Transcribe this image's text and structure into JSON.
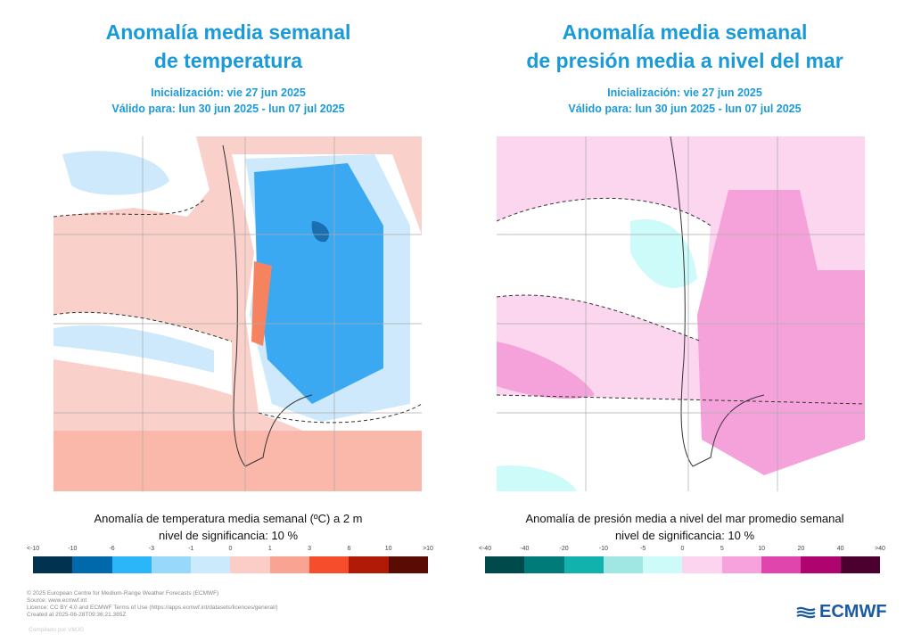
{
  "left": {
    "title_line1": "Anomalía media semanal",
    "title_line2": "de temperatura",
    "init": "Inicialización: vie 27 jun 2025",
    "valid": "Válido para: lun 30 jun 2025 - lun 07 jul 2025",
    "caption": "Anomalía de temperatura media semanal (ºC) a 2 m",
    "significance": "nivel de significancia: 10 %",
    "colorbar": {
      "ticks": [
        "<-10",
        "-10",
        "-6",
        "-3",
        "-1",
        "0",
        "1",
        "3",
        "6",
        "10",
        ">10"
      ],
      "colors": [
        "#01324f",
        "#0069ab",
        "#2ab6f8",
        "#98d8fb",
        "#cbeafb",
        "#fcccc6",
        "#f9a392",
        "#f64d2c",
        "#b01a07",
        "#5a0b03"
      ]
    }
  },
  "right": {
    "title_line1": "Anomalía media semanal",
    "title_line2": "de presión media a nivel del mar",
    "init": "Inicialización: vie 27 jun 2025",
    "valid": "Válido para: lun 30 jun 2025 - lun 07 jul 2025",
    "caption": "Anomalía de presión media a nivel del mar promedio semanal",
    "significance": "nivel de significancia: 10 %",
    "colorbar": {
      "ticks": [
        "<-40",
        "-40",
        "-20",
        "-10",
        "-5",
        "0",
        "5",
        "10",
        "20",
        "40",
        ">40"
      ],
      "colors": [
        "#014a4b",
        "#017b7a",
        "#11b2ae",
        "#a0e6e3",
        "#ccfbf9",
        "#fcd4ef",
        "#f7a2dc",
        "#e044ad",
        "#af0370",
        "#4b0030"
      ]
    }
  },
  "footer": {
    "lines": [
      "© 2025 European Centre for Medium-Range Weather Forecasts (ECMWF)",
      "Source: www.ecmwf.int",
      "Licence: CC BY 4.0 and ECMWF Terms of Use (https://apps.ecmwf.int/datasets/licences/general/)",
      "Created at 2025-06-28T09:36:21.385Z"
    ],
    "compiled": "Compilado por VMJG",
    "logo": "ECMWF"
  }
}
